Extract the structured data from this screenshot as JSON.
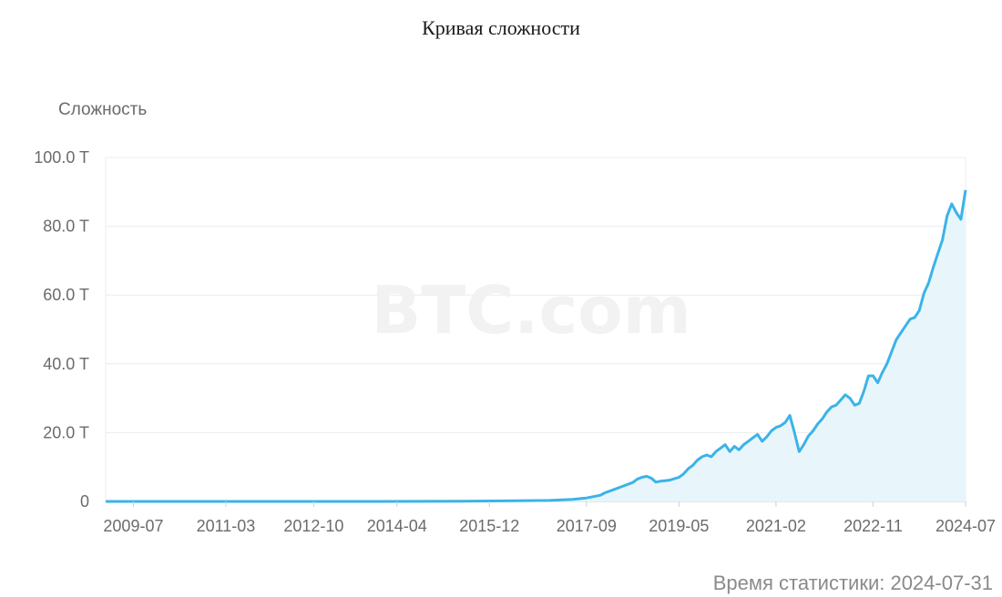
{
  "chart_data": {
    "type": "area",
    "title": "Кривая сложности",
    "ylabel": "Сложность",
    "watermark": "BTC.com",
    "footer": "Время статистики: 2024-07-31",
    "ylim": [
      0,
      100
    ],
    "yticks": [
      {
        "value": 0,
        "label": "0"
      },
      {
        "value": 20,
        "label": "20.0 T"
      },
      {
        "value": 40,
        "label": "40.0 T"
      },
      {
        "value": 60,
        "label": "60.0 T"
      },
      {
        "value": 80,
        "label": "80.0 T"
      },
      {
        "value": 100,
        "label": "100.0 T"
      }
    ],
    "xticks": [
      "2009-07",
      "2011-03",
      "2012-10",
      "2014-04",
      "2015-12",
      "2017-09",
      "2019-05",
      "2021-02",
      "2022-11",
      "2024-07"
    ],
    "xlim": [
      "2009-01",
      "2024-07"
    ],
    "line_color": "#3bb3e8",
    "fill_color": "#e8f6fc",
    "grid": true,
    "series": [
      {
        "points": [
          [
            "2009-01",
            0
          ],
          [
            "2012-06",
            0.002
          ],
          [
            "2013-12",
            0.002
          ],
          [
            "2015-06",
            0.05
          ],
          [
            "2016-06",
            0.2
          ],
          [
            "2017-01",
            0.3
          ],
          [
            "2017-06",
            0.6
          ],
          [
            "2017-09",
            1.0
          ],
          [
            "2017-12",
            1.8
          ],
          [
            "2018-01",
            2.5
          ],
          [
            "2018-03",
            3.5
          ],
          [
            "2018-05",
            4.5
          ],
          [
            "2018-07",
            5.5
          ],
          [
            "2018-08",
            6.5
          ],
          [
            "2018-09",
            7.0
          ],
          [
            "2018-10",
            7.3
          ],
          [
            "2018-11",
            6.8
          ],
          [
            "2018-12",
            5.6
          ],
          [
            "2019-01",
            5.9
          ],
          [
            "2019-03",
            6.2
          ],
          [
            "2019-05",
            7.0
          ],
          [
            "2019-06",
            8.0
          ],
          [
            "2019-07",
            9.5
          ],
          [
            "2019-08",
            10.5
          ],
          [
            "2019-09",
            12.0
          ],
          [
            "2019-10",
            13.0
          ],
          [
            "2019-11",
            13.5
          ],
          [
            "2019-12",
            13.0
          ],
          [
            "2020-01",
            14.5
          ],
          [
            "2020-02",
            15.5
          ],
          [
            "2020-03",
            16.5
          ],
          [
            "2020-04",
            14.5
          ],
          [
            "2020-05",
            16.0
          ],
          [
            "2020-06",
            15.0
          ],
          [
            "2020-07",
            16.5
          ],
          [
            "2020-08",
            17.5
          ],
          [
            "2020-09",
            18.5
          ],
          [
            "2020-10",
            19.5
          ],
          [
            "2020-11",
            17.5
          ],
          [
            "2020-12",
            18.8
          ],
          [
            "2021-01",
            20.5
          ],
          [
            "2021-02",
            21.5
          ],
          [
            "2021-03",
            22.0
          ],
          [
            "2021-04",
            23.0
          ],
          [
            "2021-05",
            25.0
          ],
          [
            "2021-06",
            20.0
          ],
          [
            "2021-07",
            14.5
          ],
          [
            "2021-08",
            16.5
          ],
          [
            "2021-09",
            19.0
          ],
          [
            "2021-10",
            20.5
          ],
          [
            "2021-11",
            22.5
          ],
          [
            "2021-12",
            24.0
          ],
          [
            "2022-01",
            26.0
          ],
          [
            "2022-02",
            27.5
          ],
          [
            "2022-03",
            28.0
          ],
          [
            "2022-04",
            29.5
          ],
          [
            "2022-05",
            31.0
          ],
          [
            "2022-06",
            30.0
          ],
          [
            "2022-07",
            28.0
          ],
          [
            "2022-08",
            28.5
          ],
          [
            "2022-09",
            32.0
          ],
          [
            "2022-10",
            36.5
          ],
          [
            "2022-11",
            36.5
          ],
          [
            "2022-12",
            34.5
          ],
          [
            "2023-01",
            37.5
          ],
          [
            "2023-02",
            40.0
          ],
          [
            "2023-03",
            43.5
          ],
          [
            "2023-04",
            47.0
          ],
          [
            "2023-05",
            49.0
          ],
          [
            "2023-06",
            51.0
          ],
          [
            "2023-07",
            53.0
          ],
          [
            "2023-08",
            53.5
          ],
          [
            "2023-09",
            55.5
          ],
          [
            "2023-10",
            60.5
          ],
          [
            "2023-11",
            63.5
          ],
          [
            "2023-12",
            68.0
          ],
          [
            "2024-01",
            72.0
          ],
          [
            "2024-02",
            76.0
          ],
          [
            "2024-03",
            83.0
          ],
          [
            "2024-04",
            86.5
          ],
          [
            "2024-05",
            84.0
          ],
          [
            "2024-06",
            82.0
          ],
          [
            "2024-07",
            90.5
          ]
        ]
      }
    ]
  }
}
